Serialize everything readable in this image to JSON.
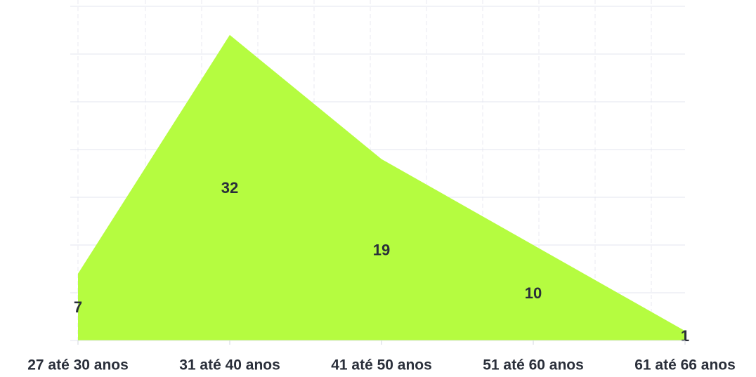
{
  "chart_data": {
    "type": "area",
    "categories": [
      "27 até 30 anos",
      "31 até 40 anos",
      "41 até 50 anos",
      "51 até 60 anos",
      "61 até 66 anos"
    ],
    "values": [
      7,
      32,
      19,
      10,
      1
    ],
    "color": "#b5fc40",
    "ylim": [
      0,
      35
    ],
    "yticks": [
      0,
      5,
      10,
      15,
      20,
      25,
      30,
      35
    ],
    "grid": true
  }
}
